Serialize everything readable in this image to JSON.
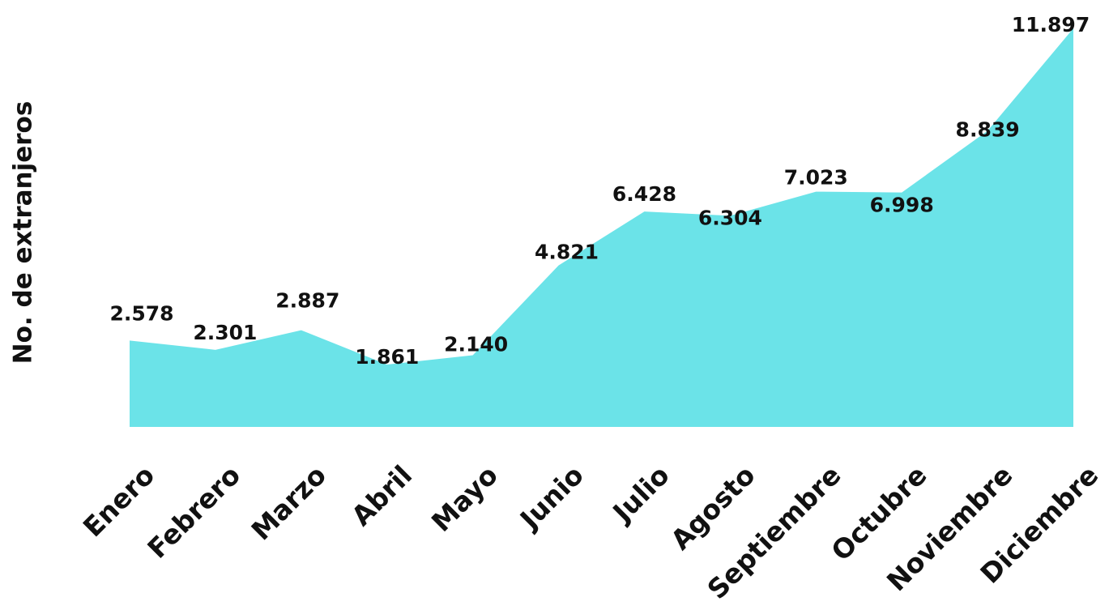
{
  "chart_data": {
    "type": "area",
    "y_label": "No. de extranjeros",
    "categories": [
      "Enero",
      "Febrero",
      "Marzo",
      "Abril",
      "Mayo",
      "Junio",
      "Julio",
      "Agosto",
      "Septiembre",
      "Octubre",
      "Noviembre",
      "Diciembre"
    ],
    "values": [
      2578,
      2301,
      2887,
      1861,
      2140,
      4821,
      6428,
      6304,
      7023,
      6998,
      8839,
      11897
    ],
    "value_labels": [
      "2.578",
      "2.301",
      "2.887",
      "1.861",
      "2.140",
      "4.821",
      "6.428",
      "6.304",
      "7.023",
      "6.998",
      "8.839",
      "11.897"
    ],
    "color": "#6be3e8"
  }
}
